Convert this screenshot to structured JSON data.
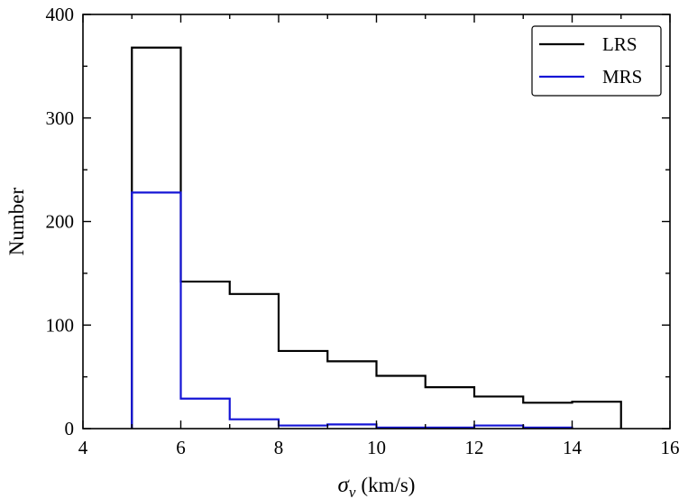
{
  "chart_data": {
    "type": "histogram",
    "title": "",
    "xlabel": {
      "symbol": "σ",
      "subscript": "v",
      "unit": "(km/s)"
    },
    "ylabel": "Number",
    "xlim": [
      4,
      16
    ],
    "ylim": [
      0,
      400
    ],
    "xticks": [
      4,
      6,
      8,
      10,
      12,
      14,
      16
    ],
    "yticks": [
      0,
      100,
      200,
      300,
      400
    ],
    "x_minor_step": 1,
    "y_minor_step": 50,
    "grid": false,
    "legend_position": "top-right",
    "series": [
      {
        "name": "LRS",
        "color": "#000000",
        "bin_edges": [
          5,
          6,
          7,
          8,
          9,
          10,
          11,
          12,
          13,
          14,
          15
        ],
        "counts": [
          368,
          142,
          130,
          75,
          65,
          51,
          40,
          31,
          25,
          26
        ]
      },
      {
        "name": "MRS",
        "color": "#1515d6",
        "bin_edges": [
          5,
          6,
          7,
          8,
          9,
          10,
          11,
          12,
          13,
          14
        ],
        "counts": [
          228,
          29,
          9,
          3,
          4,
          1,
          1,
          3,
          1
        ]
      }
    ]
  }
}
